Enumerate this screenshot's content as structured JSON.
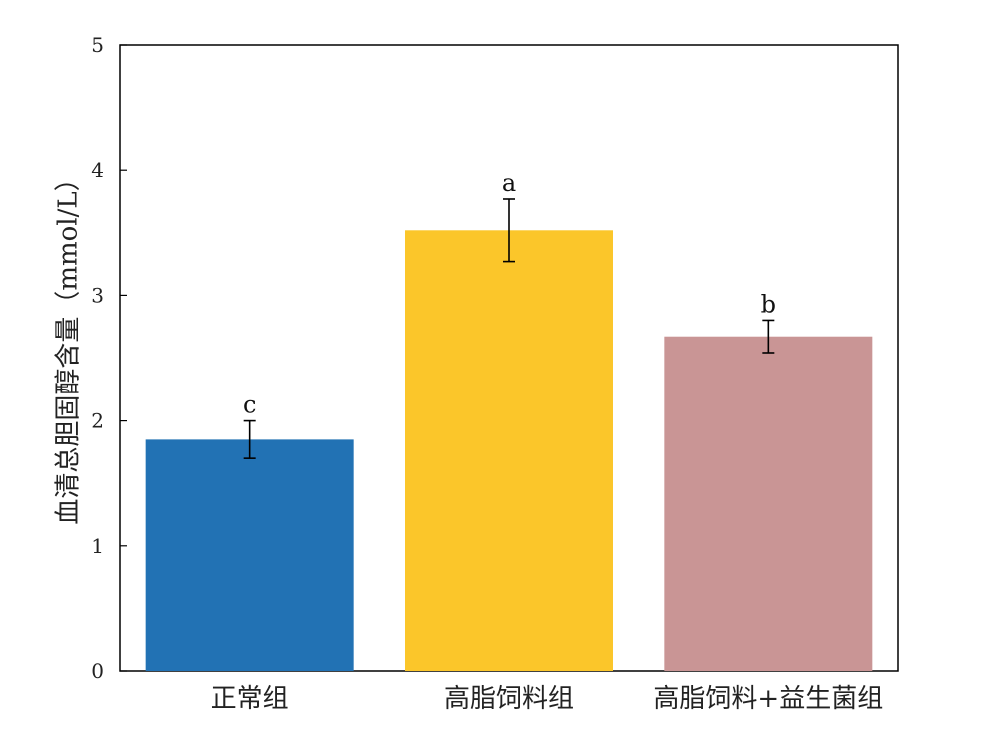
{
  "chart_data": {
    "type": "bar",
    "title": "",
    "xlabel": "",
    "ylabel": "血清总胆固醇含量（mmol/L）",
    "ylim": [
      0,
      5
    ],
    "yticks": [
      "0",
      "1",
      "2",
      "3",
      "4",
      "5"
    ],
    "categories": [
      "正常组",
      "高脂饲料组",
      "高脂饲料+益生菌组"
    ],
    "values": [
      1.85,
      3.52,
      2.67
    ],
    "errors": [
      0.15,
      0.25,
      0.13
    ],
    "significance_labels": [
      "c",
      "a",
      "b"
    ],
    "colors": [
      "#2272b4",
      "#fbc62a",
      "#c99595"
    ],
    "grid": false,
    "legend": "none"
  }
}
